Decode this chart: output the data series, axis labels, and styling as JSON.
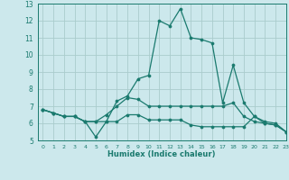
{
  "x": [
    0,
    1,
    2,
    3,
    4,
    5,
    6,
    7,
    8,
    9,
    10,
    11,
    12,
    13,
    14,
    15,
    16,
    17,
    18,
    19,
    20,
    21,
    22,
    23
  ],
  "line1": [
    6.8,
    6.6,
    6.4,
    6.4,
    6.1,
    6.1,
    6.1,
    7.3,
    7.6,
    8.6,
    8.8,
    12.0,
    11.7,
    12.7,
    11.0,
    10.9,
    10.7,
    7.2,
    9.4,
    7.2,
    6.4,
    6.1,
    6.0,
    5.5
  ],
  "line2": [
    6.8,
    6.6,
    6.4,
    6.4,
    6.1,
    5.2,
    6.1,
    6.1,
    6.5,
    6.5,
    6.2,
    6.2,
    6.2,
    6.2,
    5.9,
    5.8,
    5.8,
    5.8,
    5.8,
    5.8,
    6.4,
    6.0,
    5.9,
    5.5
  ],
  "line3": [
    6.8,
    6.6,
    6.4,
    6.4,
    6.1,
    6.1,
    6.5,
    7.0,
    7.5,
    7.4,
    7.0,
    7.0,
    7.0,
    7.0,
    7.0,
    7.0,
    7.0,
    7.0,
    7.2,
    6.4,
    6.1,
    6.0,
    5.9,
    5.5
  ],
  "line_color": "#1a7a6e",
  "bg_color": "#cce8ec",
  "grid_color": "#aacccc",
  "xlabel": "Humidex (Indice chaleur)",
  "ylim": [
    5,
    13
  ],
  "xlim": [
    -0.5,
    23
  ],
  "yticks": [
    5,
    6,
    7,
    8,
    9,
    10,
    11,
    12,
    13
  ],
  "xticks": [
    0,
    1,
    2,
    3,
    4,
    5,
    6,
    7,
    8,
    9,
    10,
    11,
    12,
    13,
    14,
    15,
    16,
    17,
    18,
    19,
    20,
    21,
    22,
    23
  ]
}
